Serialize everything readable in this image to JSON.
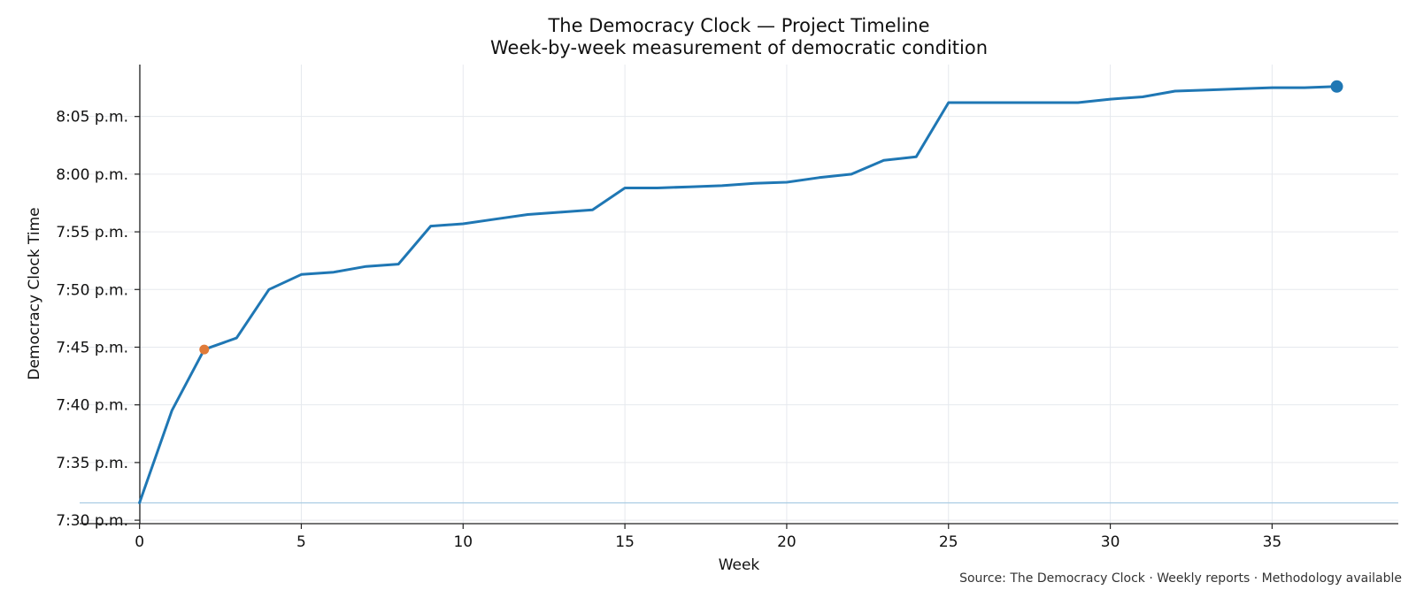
{
  "chart_data": {
    "type": "line",
    "title": "The Democracy Clock — Project Timeline",
    "subtitle": "Week-by-week measurement of democratic condition",
    "xlabel": "Week",
    "ylabel": "Democracy Clock Time",
    "source": "Source: The Democracy Clock · Weekly reports · Methodology available",
    "xlim": [
      -1.85,
      38.9
    ],
    "ylim_minutes": [
      449.7,
      489.5
    ],
    "x_ticks": [
      0,
      5,
      10,
      15,
      20,
      25,
      30,
      35
    ],
    "y_ticks": [
      {
        "minutes": 450,
        "label": "7:30 p.m."
      },
      {
        "minutes": 455,
        "label": "7:35 p.m."
      },
      {
        "minutes": 460,
        "label": "7:40 p.m."
      },
      {
        "minutes": 465,
        "label": "7:45 p.m."
      },
      {
        "minutes": 470,
        "label": "7:50 p.m."
      },
      {
        "minutes": 475,
        "label": "7:55 p.m."
      },
      {
        "minutes": 480,
        "label": "8:00 p.m."
      },
      {
        "minutes": 485,
        "label": "8:05 p.m."
      }
    ],
    "grid": true,
    "baseline_minutes": 451.5,
    "series": [
      {
        "x": [
          0,
          1,
          2,
          3,
          4,
          5,
          6,
          7,
          8,
          9,
          10,
          11,
          12,
          13,
          14,
          15,
          16,
          17,
          18,
          19,
          20,
          21,
          22,
          23,
          24,
          25,
          26,
          27,
          28,
          29,
          30,
          31,
          32,
          33,
          34,
          35,
          36,
          37
        ],
        "y_minutes": [
          451.5,
          459.5,
          464.8,
          465.8,
          470.0,
          471.3,
          471.5,
          472.0,
          472.2,
          475.5,
          475.7,
          476.1,
          476.5,
          476.7,
          476.9,
          478.8,
          478.8,
          478.9,
          479.0,
          479.2,
          479.3,
          479.7,
          480.0,
          481.2,
          481.5,
          486.2,
          486.2,
          486.2,
          486.2,
          486.2,
          486.5,
          486.7,
          487.2,
          487.3,
          487.4,
          487.5,
          487.5,
          487.6
        ],
        "color": "#1f77b4"
      }
    ],
    "highlight_points": [
      {
        "x": 2,
        "y_minutes": 464.8,
        "color": "#e07b39"
      },
      {
        "x": 37,
        "y_minutes": 487.6,
        "color": "#1f77b4"
      }
    ],
    "colors": {
      "line": "#1f77b4",
      "baseline": "#a9cce3",
      "grid": "#e6e9ee",
      "axis": "#222222"
    }
  }
}
